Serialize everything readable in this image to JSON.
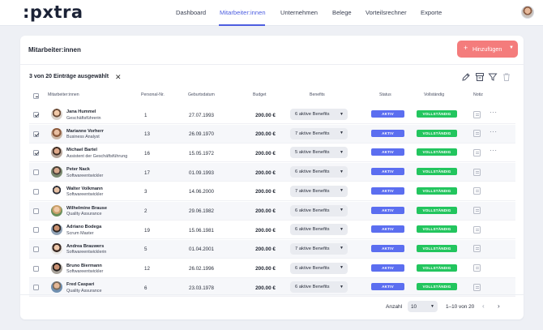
{
  "app": {
    "logo": ":pxtra"
  },
  "nav": {
    "items": [
      {
        "label": "Dashboard",
        "active": false
      },
      {
        "label": "Mitarbeiter:innen",
        "active": true
      },
      {
        "label": "Unternehmen",
        "active": false
      },
      {
        "label": "Belege",
        "active": false
      },
      {
        "label": "Vorteilsrechner",
        "active": false
      },
      {
        "label": "Exporte",
        "active": false
      }
    ]
  },
  "page": {
    "title": "Mitarbeiter:innen",
    "add_button": {
      "label": "Hinzufügen",
      "icon": "plus-icon"
    },
    "selection_text": "3 von 20 Einträge ausgewählt",
    "tools": [
      "edit-icon",
      "archive-icon",
      "filter-icon",
      "trash-icon"
    ]
  },
  "table": {
    "headers": {
      "employee": "Mitarbeiter:innen",
      "pnr": "Personal-Nr.",
      "dob": "Geburtsdatum",
      "budget": "Budget",
      "benefits": "Benefits",
      "status": "Status",
      "complete": "Vollständig",
      "note": "Notiz"
    },
    "rows": [
      {
        "name": "Jana Hummel",
        "role": "Geschäftsführerin",
        "pnr": "1",
        "dob": "27.07.1993",
        "budget": "200.00 €",
        "benefits": "6 aktive Benefits",
        "status": "AKTIV",
        "complete": "VOLLSTÄNDIG",
        "checked": true
      },
      {
        "name": "Marianne Vorherr",
        "role": "Business Analyst",
        "pnr": "13",
        "dob": "26.09.1970",
        "budget": "200.00 €",
        "benefits": "7 aktive Benefits",
        "status": "AKTIV",
        "complete": "VOLLSTÄNDIG",
        "checked": true
      },
      {
        "name": "Michael Bartel",
        "role": "Assistent der Geschäftsführung",
        "pnr": "16",
        "dob": "15.05.1972",
        "budget": "200.00 €",
        "benefits": "5 aktive Benefits",
        "status": "AKTIV",
        "complete": "VOLLSTÄNDIG",
        "checked": true
      },
      {
        "name": "Peter Nack",
        "role": "Softwareentwickler",
        "pnr": "17",
        "dob": "01.09.1993",
        "budget": "200.00 €",
        "benefits": "6 aktive Benefits",
        "status": "AKTIV",
        "complete": "VOLLSTÄNDIG",
        "checked": false
      },
      {
        "name": "Walter Volkmann",
        "role": "Softwareentwickler",
        "pnr": "3",
        "dob": "14.06.2000",
        "budget": "200.00 €",
        "benefits": "7 aktive Benefits",
        "status": "AKTIV",
        "complete": "VOLLSTÄNDIG",
        "checked": false
      },
      {
        "name": "Wilhelmine Brause",
        "role": "Quality Assurance",
        "pnr": "2",
        "dob": "29.06.1982",
        "budget": "200.00 €",
        "benefits": "6 aktive Benefits",
        "status": "AKTIV",
        "complete": "VOLLSTÄNDIG",
        "checked": false
      },
      {
        "name": "Adriano Bodega",
        "role": "Scrum Master",
        "pnr": "19",
        "dob": "15.06.1981",
        "budget": "200.00 €",
        "benefits": "6 aktive Benefits",
        "status": "AKTIV",
        "complete": "VOLLSTÄNDIG",
        "checked": false
      },
      {
        "name": "Andrea Brauwers",
        "role": "Softwareentwicklerin",
        "pnr": "5",
        "dob": "01.04.2001",
        "budget": "200.00 €",
        "benefits": "7 aktive Benefits",
        "status": "AKTIV",
        "complete": "VOLLSTÄNDIG",
        "checked": false
      },
      {
        "name": "Bruno Biermann",
        "role": "Softwareentwickler",
        "pnr": "12",
        "dob": "26.02.1996",
        "budget": "200.00 €",
        "benefits": "6 aktive Benefits",
        "status": "AKTIV",
        "complete": "VOLLSTÄNDIG",
        "checked": false
      },
      {
        "name": "Fred Caspari",
        "role": "Quality Assurance",
        "pnr": "6",
        "dob": "23.03.1978",
        "budget": "200.00 €",
        "benefits": "6 aktive Benefits",
        "status": "AKTIV",
        "complete": "VOLLSTÄNDIG",
        "checked": false
      }
    ]
  },
  "pagination": {
    "count_label": "Anzahl",
    "per_page": "10",
    "range": "1–10 von 20"
  },
  "colors": {
    "accent": "#4d5ee0",
    "add_button": "#f47c7c",
    "status_active": "#5b6ef0",
    "complete": "#22c55e"
  }
}
